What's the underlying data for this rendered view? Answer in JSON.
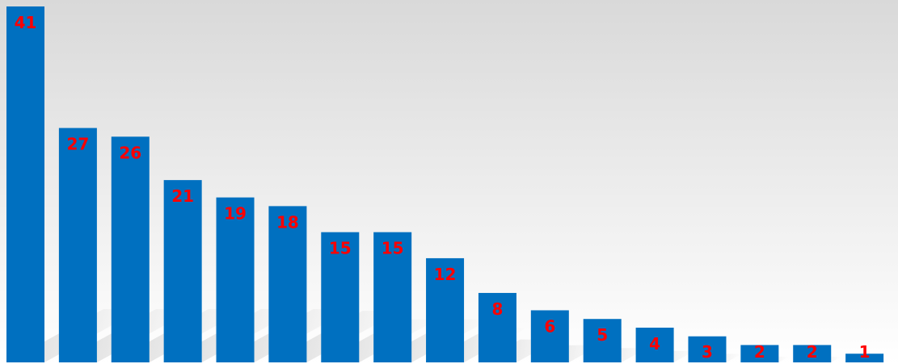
{
  "chart_data": {
    "type": "bar",
    "values": [
      41,
      27,
      26,
      21,
      19,
      18,
      15,
      15,
      12,
      8,
      6,
      5,
      4,
      3,
      2,
      2,
      1
    ],
    "data_labels": [
      "41",
      "27",
      "26",
      "21",
      "19",
      "18",
      "15",
      "15",
      "12",
      "8",
      "6",
      "5",
      "4",
      "3",
      "2",
      "2",
      "1"
    ],
    "title": "",
    "xlabel": "",
    "ylabel": "",
    "ylim": [
      0,
      41
    ],
    "grid": false,
    "legend": "none",
    "bar_color": "#0070C0",
    "label_color": "#FF0000",
    "background_gradient": [
      "#D9D9D9",
      "#FFFFFF"
    ]
  }
}
